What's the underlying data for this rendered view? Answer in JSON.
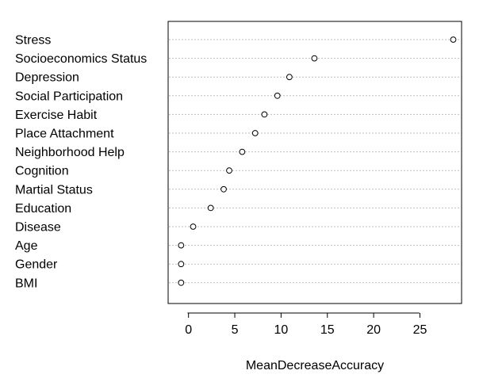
{
  "chart_data": {
    "type": "scatter",
    "title": "",
    "xlabel": "MeanDecreaseAccuracy",
    "ylabel": "",
    "xlim": [
      -2.2,
      29.5
    ],
    "xticks": [
      0,
      5,
      10,
      15,
      20,
      25
    ],
    "grid": "dotted horizontal guide per row",
    "categories": [
      "Stress",
      "Socioeconomics Status",
      "Depression",
      "Social Participation",
      "Exercise Habit",
      "Place Attachment",
      "Neighborhood Help",
      "Cognition",
      "Martial Status",
      "Education",
      "Disease",
      "Age",
      "Gender",
      "BMI"
    ],
    "values": [
      28.6,
      13.6,
      10.9,
      9.6,
      8.2,
      7.2,
      5.8,
      4.4,
      3.8,
      2.4,
      0.5,
      -0.8,
      -0.8,
      -0.8
    ]
  },
  "colors": {
    "axis": "#000000",
    "guide": "#bebebe",
    "point_stroke": "#000000",
    "background": "#ffffff"
  }
}
